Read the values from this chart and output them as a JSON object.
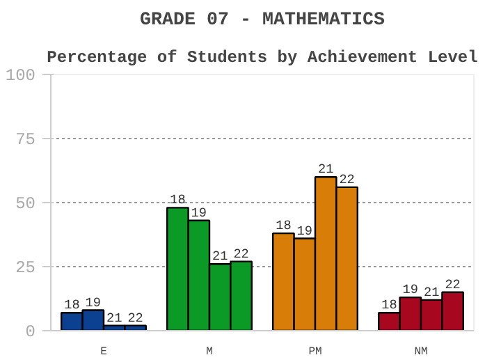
{
  "chart_data": {
    "type": "bar",
    "title": "GRADE 07 - MATHEMATICS",
    "subtitle": "Percentage of Students by Achievement Level",
    "categories": [
      "E",
      "M",
      "PM",
      "NM"
    ],
    "series": [
      {
        "name": "18",
        "colors": [
          "#0c4191",
          "#0c9a26",
          "#d87d07",
          "#a7071f"
        ],
        "values": [
          7,
          48,
          38,
          7
        ]
      },
      {
        "name": "19",
        "colors": [
          "#0c4191",
          "#0c9a26",
          "#d87d07",
          "#a7071f"
        ],
        "values": [
          8,
          43,
          36,
          13
        ]
      },
      {
        "name": "21",
        "colors": [
          "#0c4191",
          "#0c9a26",
          "#d87d07",
          "#a7071f"
        ],
        "values": [
          2,
          26,
          60,
          12
        ]
      },
      {
        "name": "22",
        "colors": [
          "#0c4191",
          "#0c9a26",
          "#d87d07",
          "#a7071f"
        ],
        "values": [
          2,
          27,
          56,
          15
        ]
      }
    ],
    "ylim": [
      0,
      100
    ],
    "yticks": [
      0,
      25,
      50,
      75,
      100
    ],
    "grid": "y"
  }
}
